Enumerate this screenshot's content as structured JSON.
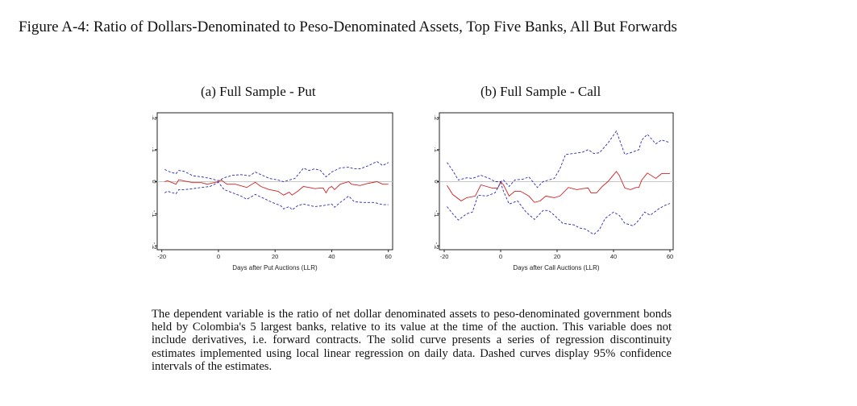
{
  "title": "Figure A-4: Ratio of Dollars-Denominated to Peso-Denominated Assets, Top Five Banks, All But Forwards",
  "notes": "The dependent variable is the ratio of net dollar denominated assets to peso-denominated government bonds held by Colombia's 5 largest banks, relative to its value at the time of the auction. This variable does not include derivatives, i.e. forward contracts. The solid curve presents a series of regression discontinuity estimates implemented using local linear regression on daily data. Dashed curves display 95% confidence intervals of the estimates.",
  "colors": {
    "estimate": "#d42020",
    "ci": "#2a2ab8",
    "zero": "#c8c8c8"
  },
  "chart_data": [
    {
      "type": "line",
      "title": "(a) Full Sample - Put",
      "xlabel": "Days after Put Auctions (LLR)",
      "ylabel": "",
      "xlim": [
        -21,
        62
      ],
      "ylim": [
        -0.21,
        0.21
      ],
      "xticks": [
        -20,
        0,
        20,
        40,
        60
      ],
      "xtick_labels": [
        "-20",
        "0",
        "20",
        "40",
        "60"
      ],
      "yticks": [
        -0.2,
        -0.1,
        0,
        0.1,
        0.2
      ],
      "ytick_labels": [
        "-.2",
        "-.1",
        "0",
        ".1",
        ".2"
      ],
      "series": [
        {
          "name": "estimate",
          "style": "solid",
          "x": [
            -19,
            -18,
            -15,
            -14,
            -12,
            -9,
            -6,
            -4,
            0,
            1,
            3,
            6,
            10,
            13,
            15,
            18,
            21,
            23,
            25,
            26,
            28,
            30,
            32,
            34,
            36,
            37,
            38,
            39,
            40,
            41,
            43,
            46,
            47,
            50,
            53,
            56,
            58,
            60
          ],
          "y": [
            0,
            0.003,
            -0.008,
            0.006,
            0.002,
            -0.003,
            -0.003,
            -0.008,
            0,
            0.005,
            -0.008,
            -0.008,
            -0.018,
            -0.002,
            -0.015,
            -0.025,
            -0.03,
            -0.042,
            -0.033,
            -0.042,
            -0.03,
            -0.015,
            -0.018,
            -0.022,
            -0.02,
            -0.02,
            -0.035,
            -0.02,
            -0.015,
            -0.025,
            -0.008,
            0,
            -0.008,
            -0.012,
            -0.005,
            0,
            -0.008,
            -0.008
          ]
        },
        {
          "name": "upper 95% CI",
          "style": "dashed",
          "x": [
            -19,
            -17,
            -15,
            -14,
            -12,
            -9,
            -6,
            -3,
            0,
            2,
            5,
            8,
            11,
            13,
            15,
            18,
            21,
            23,
            25,
            27,
            30,
            32,
            34,
            36,
            38,
            40,
            43,
            46,
            48,
            50,
            53,
            56,
            58,
            60
          ],
          "y": [
            0.038,
            0.03,
            0.025,
            0.035,
            0.032,
            0.018,
            0.015,
            0.01,
            0.003,
            0.012,
            0.02,
            0.022,
            0.018,
            0.03,
            0.022,
            0.01,
            0.005,
            0,
            0.005,
            0.01,
            0.042,
            0.035,
            0.04,
            0.035,
            0.015,
            0.03,
            0.043,
            0.045,
            0.04,
            0.04,
            0.05,
            0.063,
            0.05,
            0.06
          ]
        },
        {
          "name": "lower 95% CI",
          "style": "dashed",
          "x": [
            -19,
            -18,
            -15,
            -14,
            -12,
            -9,
            -6,
            -3,
            0,
            2,
            5,
            8,
            10,
            13,
            16,
            19,
            22,
            23,
            25,
            26,
            28,
            30,
            34,
            37,
            40,
            41,
            43,
            46,
            48,
            51,
            55,
            58,
            60
          ],
          "y": [
            -0.035,
            -0.03,
            -0.038,
            -0.025,
            -0.025,
            -0.022,
            -0.018,
            -0.015,
            -0.002,
            -0.025,
            -0.035,
            -0.045,
            -0.055,
            -0.04,
            -0.052,
            -0.065,
            -0.075,
            -0.085,
            -0.078,
            -0.088,
            -0.075,
            -0.07,
            -0.078,
            -0.075,
            -0.07,
            -0.08,
            -0.065,
            -0.045,
            -0.063,
            -0.065,
            -0.065,
            -0.072,
            -0.072
          ]
        }
      ]
    },
    {
      "type": "line",
      "title": "(b) Full Sample - Call",
      "xlabel": "Days after Call Auctions (LLR)",
      "ylabel": "",
      "xlim": [
        -21,
        62
      ],
      "ylim": [
        -0.21,
        0.21
      ],
      "xticks": [
        -20,
        0,
        20,
        40,
        60
      ],
      "xtick_labels": [
        "-20",
        "0",
        "20",
        "40",
        "60"
      ],
      "yticks": [
        -0.2,
        -0.1,
        0,
        0.1,
        0.2
      ],
      "ytick_labels": [
        "-.2",
        "-.1",
        "0",
        ".1",
        ".2"
      ],
      "series": [
        {
          "name": "estimate",
          "style": "solid",
          "x": [
            -19,
            -17,
            -14,
            -12,
            -9,
            -7,
            -5,
            -3,
            -1,
            0,
            1,
            3,
            5,
            7,
            10,
            12,
            14,
            16,
            19,
            21,
            24,
            27,
            29,
            31,
            32,
            34,
            36,
            38,
            41,
            42,
            44,
            46,
            48,
            49,
            50,
            52,
            55,
            57,
            60
          ],
          "y": [
            -0.012,
            -0.04,
            -0.06,
            -0.05,
            -0.045,
            -0.01,
            -0.015,
            -0.02,
            -0.02,
            0,
            -0.01,
            -0.045,
            -0.03,
            -0.03,
            -0.045,
            -0.065,
            -0.06,
            -0.045,
            -0.05,
            -0.045,
            -0.018,
            -0.025,
            -0.022,
            -0.02,
            -0.035,
            -0.035,
            -0.015,
            0,
            0.032,
            0.02,
            -0.02,
            -0.025,
            -0.018,
            -0.018,
            0.005,
            0.027,
            0.01,
            0.025,
            0.025
          ]
        },
        {
          "name": "upper 95% CI",
          "style": "dashed",
          "x": [
            -19,
            -17,
            -15,
            -12,
            -10,
            -7,
            -4,
            -2,
            0,
            1,
            3,
            5,
            8,
            10,
            13,
            15,
            19,
            21,
            23,
            26,
            29,
            31,
            33,
            35,
            38,
            41,
            44,
            46,
            49,
            50,
            52,
            55,
            57,
            60
          ],
          "y": [
            0.06,
            0.035,
            0.005,
            0.012,
            0.01,
            0.02,
            0.01,
            0,
            0,
            0.005,
            -0.015,
            0.005,
            0.008,
            0.015,
            -0.018,
            0,
            0.01,
            0.04,
            0.085,
            0.088,
            0.092,
            0.1,
            0.088,
            0.09,
            0.12,
            0.158,
            0.085,
            0.09,
            0.1,
            0.13,
            0.148,
            0.118,
            0.13,
            0.122
          ]
        },
        {
          "name": "lower 95% CI",
          "style": "dashed",
          "x": [
            -19,
            -17,
            -15,
            -12,
            -10,
            -8,
            -5,
            -2,
            0,
            1,
            3,
            6,
            9,
            12,
            15,
            17,
            19,
            22,
            26,
            28,
            30,
            33,
            35,
            37,
            40,
            42,
            44,
            47,
            49,
            51,
            53,
            56,
            58,
            60
          ],
          "y": [
            -0.078,
            -0.1,
            -0.12,
            -0.1,
            -0.095,
            -0.042,
            -0.045,
            -0.035,
            -0.003,
            -0.03,
            -0.07,
            -0.06,
            -0.095,
            -0.118,
            -0.09,
            -0.09,
            -0.105,
            -0.13,
            -0.135,
            -0.145,
            -0.148,
            -0.165,
            -0.15,
            -0.115,
            -0.095,
            -0.105,
            -0.13,
            -0.138,
            -0.12,
            -0.095,
            -0.105,
            -0.085,
            -0.075,
            -0.068
          ]
        }
      ]
    }
  ]
}
